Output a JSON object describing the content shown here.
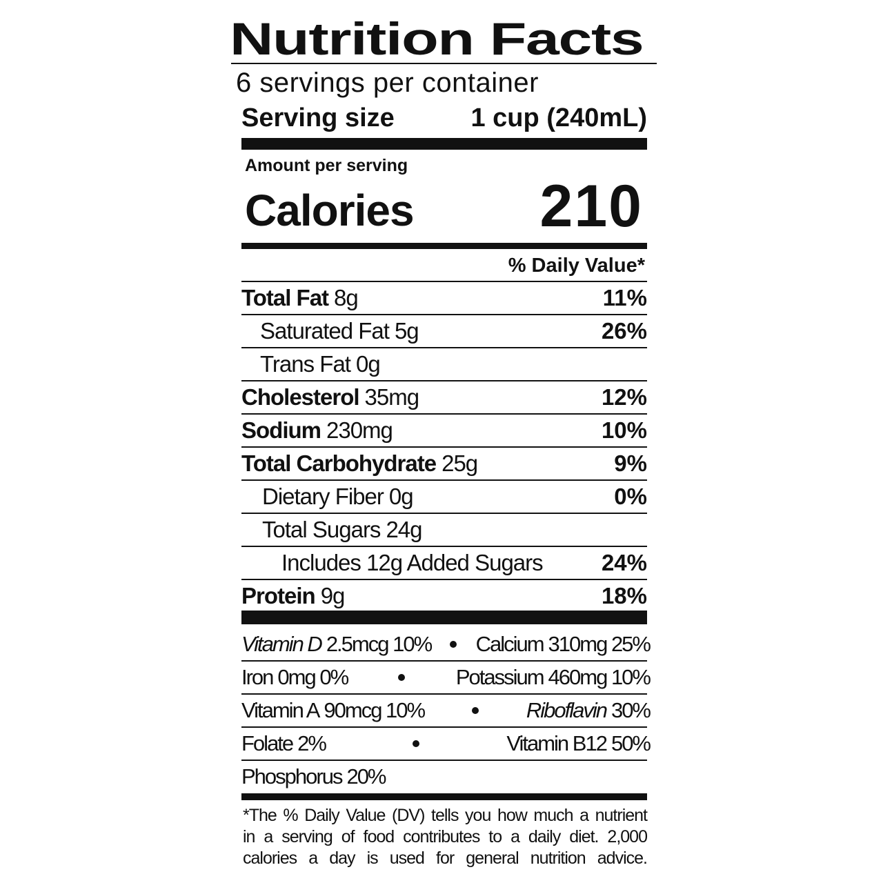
{
  "title": "Nutrition Facts",
  "servings": "6 servings per container",
  "serving_size": {
    "label": "Serving size",
    "value": "1 cup (240mL)"
  },
  "amount_per_serving": "Amount per serving",
  "calories": {
    "label": "Calories",
    "value": "210"
  },
  "daily_value_header": "% Daily Value*",
  "nutrients": [
    {
      "name": "Total Fat",
      "amount": "8g",
      "dv": "11%"
    },
    {
      "name": "Saturated Fat",
      "amount": "5g",
      "dv": "26%"
    },
    {
      "name": "Trans Fat",
      "amount": "0g"
    },
    {
      "name": "Cholesterol",
      "amount": "35mg",
      "dv": "12%"
    },
    {
      "name": "Sodium",
      "amount": "230mg",
      "dv": "10%"
    },
    {
      "name": "Total Carbohydrate",
      "amount": "25g",
      "dv": "9%"
    },
    {
      "name": "Dietary Fiber",
      "amount": "0g",
      "dv": "0%"
    },
    {
      "name": "Total Sugars",
      "amount": "24g"
    },
    {
      "name": "Includes 12g Added Sugars",
      "dv": "24%"
    },
    {
      "name": "Protein",
      "amount": "9g",
      "dv": "18%"
    }
  ],
  "vitamins_minerals": [
    [
      {
        "name": "Vitamin D",
        "amount": "2.5mcg 10%"
      },
      {
        "name": "Calcium",
        "amount": "310mg 25%"
      }
    ],
    [
      {
        "name": "Iron",
        "amount": "0mg 0%"
      },
      {
        "name": "Potassium",
        "amount": "460mg 10%"
      }
    ],
    [
      {
        "name": "Vitamin A",
        "amount": "90mcg 10%"
      },
      {
        "name": "Riboflavin",
        "amount": "30%"
      }
    ],
    [
      {
        "name": "Folate",
        "amount": "2%"
      },
      {
        "name": "Vitamin B12",
        "amount": "50%"
      }
    ],
    [
      {
        "name": "Phosphorus",
        "amount": "20%"
      }
    ]
  ],
  "footnote": [
    "*The % Daily Value (DV) tells you how much a nutrient",
    "in a serving of food contributes to a daily diet. 2,000",
    "calories a day is used for general nutrition advice."
  ]
}
